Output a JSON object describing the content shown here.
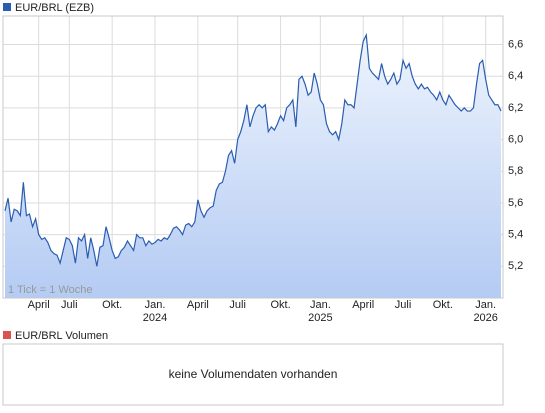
{
  "chart_data": {
    "type": "area",
    "series": [
      {
        "name": "EUR/BRL (EZB)",
        "color": "#2a5db0",
        "values": [
          5.55,
          5.63,
          5.48,
          5.56,
          5.55,
          5.52,
          5.73,
          5.52,
          5.53,
          5.45,
          5.5,
          5.4,
          5.37,
          5.38,
          5.35,
          5.3,
          5.28,
          5.27,
          5.22,
          5.3,
          5.38,
          5.37,
          5.33,
          5.22,
          5.38,
          5.36,
          5.4,
          5.25,
          5.38,
          5.3,
          5.2,
          5.32,
          5.33,
          5.45,
          5.38,
          5.3,
          5.25,
          5.26,
          5.3,
          5.32,
          5.36,
          5.33,
          5.3,
          5.4,
          5.38,
          5.38,
          5.33,
          5.36,
          5.34,
          5.35,
          5.37,
          5.36,
          5.38,
          5.37,
          5.4,
          5.44,
          5.45,
          5.43,
          5.4,
          5.46,
          5.47,
          5.45,
          5.48,
          5.62,
          5.55,
          5.51,
          5.55,
          5.57,
          5.58,
          5.68,
          5.72,
          5.73,
          5.8,
          5.9,
          5.93,
          5.85,
          6.0,
          6.05,
          6.12,
          6.22,
          6.08,
          6.15,
          6.2,
          6.22,
          6.2,
          6.22,
          6.05,
          6.08,
          6.06,
          6.1,
          6.15,
          6.12,
          6.2,
          6.22,
          6.25,
          6.08,
          6.38,
          6.4,
          6.35,
          6.28,
          6.3,
          6.42,
          6.35,
          6.25,
          6.22,
          6.1,
          6.05,
          6.03,
          6.05,
          6.0,
          6.1,
          6.25,
          6.22,
          6.22,
          6.2,
          6.35,
          6.5,
          6.62,
          6.66,
          6.45,
          6.42,
          6.4,
          6.38,
          6.48,
          6.4,
          6.35,
          6.38,
          6.42,
          6.35,
          6.38,
          6.5,
          6.45,
          6.48,
          6.4,
          6.35,
          6.32,
          6.35,
          6.32,
          6.33,
          6.3,
          6.28,
          6.25,
          6.3,
          6.25,
          6.22,
          6.28,
          6.25,
          6.22,
          6.2,
          6.18,
          6.2,
          6.18,
          6.18,
          6.2,
          6.35,
          6.48,
          6.5,
          6.38,
          6.28,
          6.25,
          6.22,
          6.22,
          6.18
        ]
      }
    ],
    "xlim": [
      0,
      162
    ],
    "xticks": [
      {
        "value": 11,
        "label": "April"
      },
      {
        "value": 21,
        "label": "Juli"
      },
      {
        "value": 35,
        "label": "Okt."
      },
      {
        "value": 49,
        "label": "Jan."
      },
      {
        "value": 63,
        "label": "April"
      },
      {
        "value": 76,
        "label": "Juli"
      },
      {
        "value": 90,
        "label": "Okt."
      },
      {
        "value": 103,
        "label": "Jan."
      },
      {
        "value": 117,
        "label": "April"
      },
      {
        "value": 130,
        "label": "Juli"
      },
      {
        "value": 143,
        "label": "Okt."
      },
      {
        "value": 157,
        "label": "Jan."
      }
    ],
    "year_ticks": [
      {
        "value": 49,
        "label": "2024"
      },
      {
        "value": 103,
        "label": "2025"
      },
      {
        "value": 157,
        "label": "2026"
      }
    ],
    "ylim": [
      5.0,
      6.78
    ],
    "yticks": [
      {
        "value": 5.2,
        "label": "5,2"
      },
      {
        "value": 5.4,
        "label": "5,4"
      },
      {
        "value": 5.6,
        "label": "5,6"
      },
      {
        "value": 5.8,
        "label": "5,8"
      },
      {
        "value": 6.0,
        "label": "6,0"
      },
      {
        "value": 6.2,
        "label": "6,2"
      },
      {
        "value": 6.4,
        "label": "6,4"
      },
      {
        "value": 6.6,
        "label": "6,6"
      }
    ],
    "grid": true,
    "annotation": "1 Tick = 1 Woche"
  },
  "volume_panel": {
    "title": "EUR/BRL Volumen",
    "color": "#d9534f",
    "message": "keine Volumendaten vorhanden"
  }
}
